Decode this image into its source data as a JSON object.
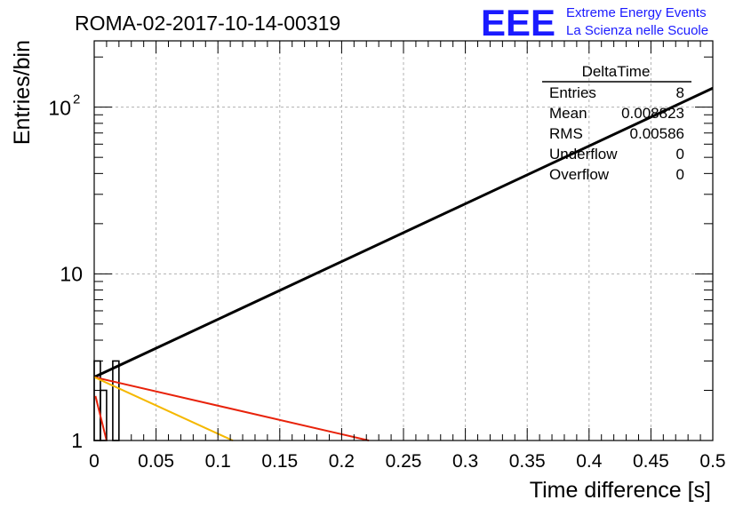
{
  "header": {
    "run_title": "ROMA-02-2017-10-14-00319",
    "logo_text": "EEE",
    "logo_line1": "Extreme Energy Events",
    "logo_line2": "La Scienza nelle Scuole",
    "logo_color": "#1a1aff"
  },
  "stats": {
    "title": "DeltaTime",
    "rows": [
      {
        "label": "Entries",
        "value": "8"
      },
      {
        "label": "Mean",
        "value": "0.008823"
      },
      {
        "label": "RMS",
        "value": "0.00586"
      },
      {
        "label": "Underflow",
        "value": "0"
      },
      {
        "label": "Overflow",
        "value": "0"
      }
    ]
  },
  "chart_data": {
    "type": "bar",
    "xlabel": "Time difference [s]",
    "ylabel": "Entries/bin",
    "xlim": [
      0,
      0.5
    ],
    "ylim": [
      1,
      250
    ],
    "yscale": "log",
    "grid": true,
    "x_ticks": [
      "0",
      "0.05",
      "0.1",
      "0.15",
      "0.2",
      "0.25",
      "0.3",
      "0.35",
      "0.4",
      "0.45",
      "0.5"
    ],
    "y_ticks": [
      {
        "value": 1,
        "label": "1"
      },
      {
        "value": 10,
        "label": "10"
      },
      {
        "value": 100,
        "label": "10",
        "exp": "2"
      }
    ],
    "histogram": {
      "bin_width": 0.005,
      "bins": [
        {
          "x0": 0.0,
          "value": 3
        },
        {
          "x0": 0.005,
          "value": 2
        },
        {
          "x0": 0.01,
          "value": 0
        },
        {
          "x0": 0.015,
          "value": 3
        }
      ]
    },
    "series": [
      {
        "color": "#000000",
        "x": [
          0.0,
          0.5
        ],
        "y": [
          2.4,
          130
        ]
      },
      {
        "color": "#e8220a",
        "x": [
          0.0,
          0.222
        ],
        "y": [
          2.4,
          1.0
        ]
      },
      {
        "color": "#f5b800",
        "x": [
          0.0,
          0.112
        ],
        "y": [
          2.4,
          1.0
        ]
      },
      {
        "color": "#e8220a",
        "x": [
          0.001,
          0.01
        ],
        "y": [
          1.85,
          1.0
        ]
      }
    ]
  }
}
